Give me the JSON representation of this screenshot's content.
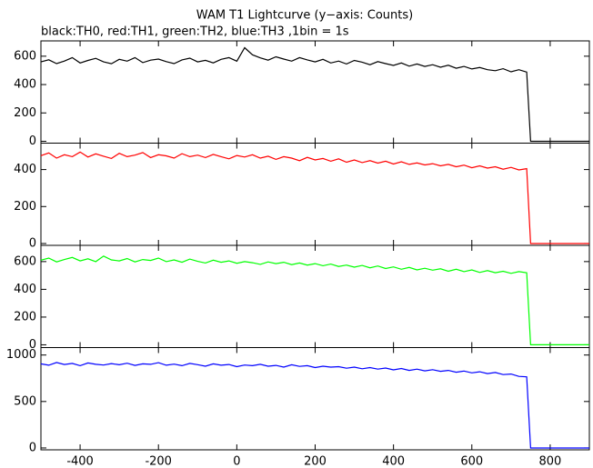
{
  "chart_data": [
    {
      "type": "line",
      "title": "WAM T1 Lightcurve (y−axis: Counts)",
      "subtitle": "black:TH0, red:TH1, green:TH2, blue:TH3 ,1bin = 1s",
      "color": "#000000",
      "x": [
        -500,
        -480,
        -460,
        -440,
        -420,
        -400,
        -380,
        -360,
        -340,
        -320,
        -300,
        -280,
        -260,
        -240,
        -220,
        -200,
        -180,
        -160,
        -140,
        -120,
        -100,
        -80,
        -60,
        -40,
        -20,
        0,
        20,
        40,
        60,
        80,
        100,
        120,
        140,
        160,
        180,
        200,
        220,
        240,
        260,
        280,
        300,
        320,
        340,
        360,
        380,
        400,
        420,
        440,
        460,
        480,
        500,
        520,
        540,
        560,
        580,
        600,
        620,
        640,
        660,
        680,
        700,
        720,
        740,
        750,
        900
      ],
      "values": [
        560,
        575,
        548,
        566,
        590,
        552,
        570,
        585,
        560,
        547,
        578,
        565,
        590,
        555,
        572,
        580,
        562,
        548,
        574,
        586,
        560,
        571,
        553,
        578,
        590,
        565,
        660,
        610,
        588,
        572,
        596,
        580,
        565,
        590,
        574,
        560,
        578,
        552,
        566,
        545,
        570,
        558,
        540,
        562,
        548,
        535,
        552,
        530,
        545,
        528,
        540,
        522,
        536,
        515,
        528,
        510,
        520,
        505,
        498,
        512,
        490,
        505,
        488,
        0,
        0
      ],
      "ylim": [
        -13,
        708
      ],
      "yticks": [
        0,
        200,
        400,
        600
      ]
    },
    {
      "type": "line",
      "color": "#ff0000",
      "x": [
        -500,
        -480,
        -460,
        -440,
        -420,
        -400,
        -380,
        -360,
        -340,
        -320,
        -300,
        -280,
        -260,
        -240,
        -220,
        -200,
        -180,
        -160,
        -140,
        -120,
        -100,
        -80,
        -60,
        -40,
        -20,
        0,
        20,
        40,
        60,
        80,
        100,
        120,
        140,
        160,
        180,
        200,
        220,
        240,
        260,
        280,
        300,
        320,
        340,
        360,
        380,
        400,
        420,
        440,
        460,
        480,
        500,
        520,
        540,
        560,
        580,
        600,
        620,
        640,
        660,
        680,
        700,
        720,
        740,
        750,
        900
      ],
      "values": [
        475,
        490,
        462,
        480,
        470,
        495,
        468,
        485,
        472,
        460,
        488,
        470,
        478,
        492,
        465,
        480,
        474,
        462,
        486,
        470,
        478,
        465,
        482,
        470,
        458,
        476,
        468,
        480,
        462,
        472,
        455,
        470,
        462,
        448,
        466,
        452,
        460,
        445,
        458,
        440,
        452,
        438,
        448,
        435,
        445,
        430,
        442,
        428,
        436,
        425,
        432,
        420,
        428,
        415,
        424,
        410,
        420,
        408,
        415,
        402,
        412,
        398,
        405,
        0,
        0
      ],
      "ylim": [
        -10,
        543
      ],
      "yticks": [
        0,
        200,
        400
      ]
    },
    {
      "type": "line",
      "color": "#00ff00",
      "x": [
        -500,
        -480,
        -460,
        -440,
        -420,
        -400,
        -380,
        -360,
        -340,
        -320,
        -300,
        -280,
        -260,
        -240,
        -220,
        -200,
        -180,
        -160,
        -140,
        -120,
        -100,
        -80,
        -60,
        -40,
        -20,
        0,
        20,
        40,
        60,
        80,
        100,
        120,
        140,
        160,
        180,
        200,
        220,
        240,
        260,
        280,
        300,
        320,
        340,
        360,
        380,
        400,
        420,
        440,
        460,
        480,
        500,
        520,
        540,
        560,
        580,
        600,
        620,
        640,
        660,
        680,
        700,
        720,
        740,
        750,
        900
      ],
      "values": [
        610,
        625,
        598,
        615,
        630,
        605,
        620,
        600,
        640,
        612,
        605,
        622,
        598,
        615,
        608,
        625,
        600,
        612,
        595,
        618,
        602,
        590,
        610,
        595,
        605,
        588,
        600,
        592,
        580,
        598,
        585,
        595,
        578,
        590,
        575,
        585,
        570,
        582,
        565,
        575,
        560,
        572,
        555,
        568,
        550,
        562,
        545,
        558,
        540,
        552,
        538,
        548,
        530,
        545,
        528,
        540,
        522,
        535,
        520,
        530,
        515,
        528,
        520,
        0,
        0
      ],
      "ylim": [
        -20,
        717
      ],
      "yticks": [
        0,
        200,
        400,
        600
      ]
    },
    {
      "type": "line",
      "color": "#0000ff",
      "x": [
        -500,
        -480,
        -460,
        -440,
        -420,
        -400,
        -380,
        -360,
        -340,
        -320,
        -300,
        -280,
        -260,
        -240,
        -220,
        -200,
        -180,
        -160,
        -140,
        -120,
        -100,
        -80,
        -60,
        -40,
        -20,
        0,
        20,
        40,
        60,
        80,
        100,
        120,
        140,
        160,
        180,
        200,
        220,
        240,
        260,
        280,
        300,
        320,
        340,
        360,
        380,
        400,
        420,
        440,
        460,
        480,
        500,
        520,
        540,
        560,
        580,
        600,
        620,
        640,
        660,
        680,
        700,
        720,
        740,
        750,
        900
      ],
      "values": [
        905,
        890,
        920,
        898,
        910,
        885,
        915,
        900,
        892,
        908,
        895,
        912,
        888,
        905,
        900,
        918,
        890,
        902,
        885,
        910,
        896,
        880,
        905,
        890,
        898,
        875,
        892,
        885,
        900,
        880,
        888,
        870,
        895,
        878,
        885,
        865,
        880,
        870,
        875,
        858,
        870,
        852,
        865,
        848,
        860,
        840,
        855,
        835,
        848,
        830,
        842,
        825,
        835,
        815,
        828,
        808,
        820,
        800,
        812,
        790,
        795,
        770,
        765,
        0,
        0
      ],
      "ylim": [
        -20,
        1080
      ],
      "yticks": [
        0,
        500,
        1000
      ],
      "xlim": [
        -500,
        900
      ],
      "xticks": [
        -400,
        -200,
        0,
        200,
        400,
        600,
        800
      ]
    }
  ]
}
